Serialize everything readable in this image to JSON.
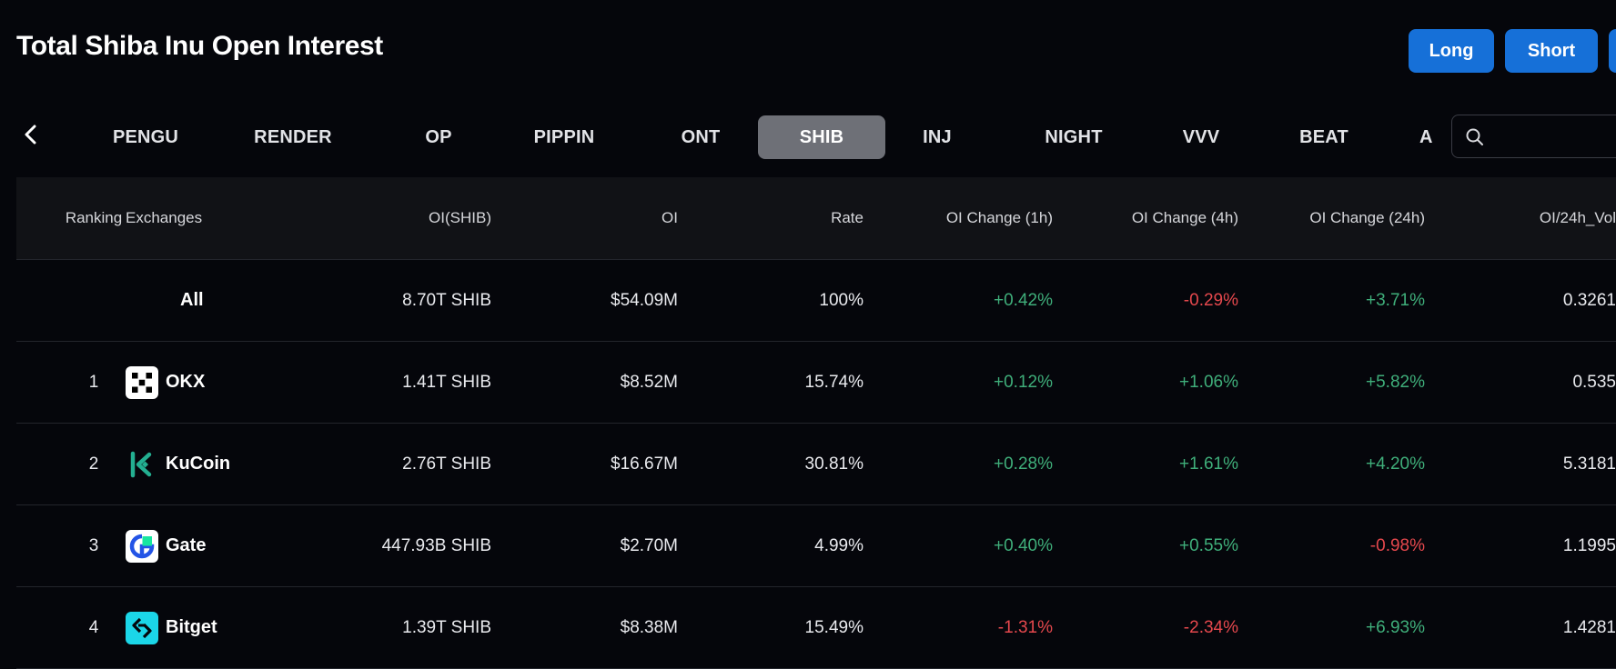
{
  "header": {
    "title": "Total Shiba Inu Open Interest",
    "buttons": {
      "long": "Long",
      "short": "Short"
    }
  },
  "tabs": [
    "PENGU",
    "RENDER",
    "OP",
    "PIPPIN",
    "ONT",
    "SHIB",
    "INJ",
    "NIGHT",
    "VVV",
    "BEAT",
    "A"
  ],
  "active_tab": "SHIB",
  "search": {
    "placeholder": "",
    "value": ""
  },
  "table": {
    "headers": {
      "ranking": "Ranking",
      "exchanges": "Exchanges",
      "oi_coin": "OI(SHIB)",
      "oi": "OI",
      "rate": "Rate",
      "oi_change_1h": "OI Change (1h)",
      "oi_change_4h": "OI Change (4h)",
      "oi_change_24h": "OI Change (24h)",
      "oi_vol": "OI/24h_Vol"
    },
    "rows": [
      {
        "rank": "",
        "exchange": "All",
        "oi_coin": "8.70T SHIB",
        "oi": "$54.09M",
        "rate": "100%",
        "ch1h": "+0.42%",
        "ch4h": "-0.29%",
        "ch24h": "+3.71%",
        "vol": "0.3261"
      },
      {
        "rank": "1",
        "exchange": "OKX",
        "oi_coin": "1.41T SHIB",
        "oi": "$8.52M",
        "rate": "15.74%",
        "ch1h": "+0.12%",
        "ch4h": "+1.06%",
        "ch24h": "+5.82%",
        "vol": "0.535"
      },
      {
        "rank": "2",
        "exchange": "KuCoin",
        "oi_coin": "2.76T SHIB",
        "oi": "$16.67M",
        "rate": "30.81%",
        "ch1h": "+0.28%",
        "ch4h": "+1.61%",
        "ch24h": "+4.20%",
        "vol": "5.3181"
      },
      {
        "rank": "3",
        "exchange": "Gate",
        "oi_coin": "447.93B SHIB",
        "oi": "$2.70M",
        "rate": "4.99%",
        "ch1h": "+0.40%",
        "ch4h": "+0.55%",
        "ch24h": "-0.98%",
        "vol": "1.1995"
      },
      {
        "rank": "4",
        "exchange": "Bitget",
        "oi_coin": "1.39T SHIB",
        "oi": "$8.38M",
        "rate": "15.49%",
        "ch1h": "-1.31%",
        "ch4h": "-2.34%",
        "ch24h": "+6.93%",
        "vol": "1.4281"
      }
    ]
  },
  "colors": {
    "background": "#05060b",
    "accent": "#1670d8",
    "positive": "#3fae7a",
    "negative": "#e5484d",
    "active_tab": "#6e7077"
  },
  "icons": {
    "prev": "chevron-left-icon",
    "search": "search-icon",
    "okx": "okx-logo-icon",
    "kucoin": "kucoin-logo-icon",
    "gate": "gate-logo-icon",
    "bitget": "bitget-logo-icon"
  }
}
